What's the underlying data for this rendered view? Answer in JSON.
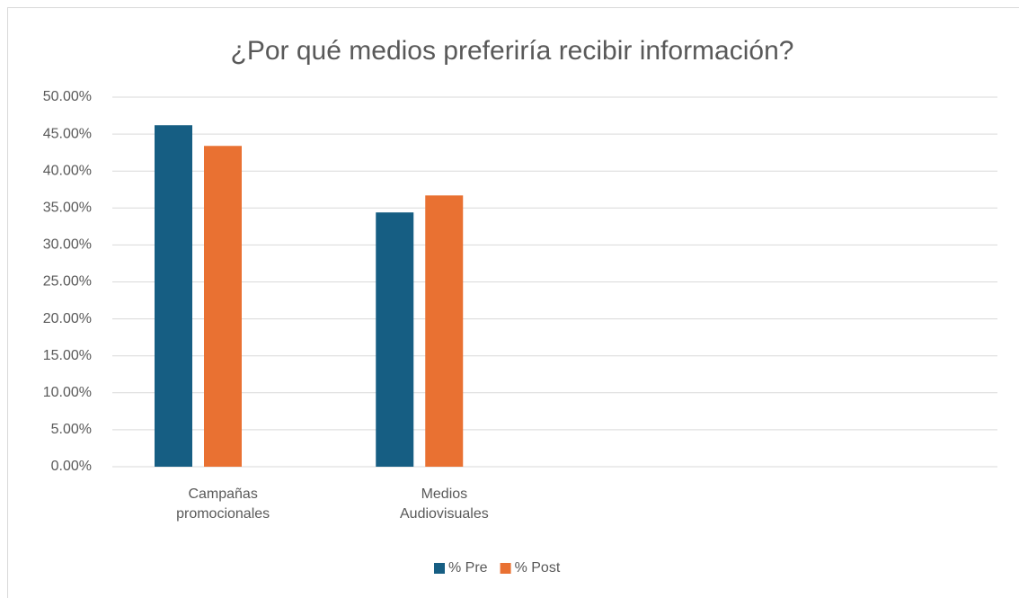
{
  "chart_data": {
    "type": "bar",
    "title": "¿Por qué medios preferiría recibir información?",
    "categories": [
      "Campañas promocionales",
      "Medios Audiovisuales",
      null,
      null
    ],
    "series": [
      {
        "name": "% Pre",
        "color": "#165E83",
        "values": [
          46.2,
          34.4,
          null,
          null
        ]
      },
      {
        "name": "% Post",
        "color": "#E97132",
        "values": [
          43.4,
          36.7,
          null,
          null
        ]
      }
    ],
    "ylim": [
      0,
      50
    ],
    "yticks": [
      {
        "value": 0,
        "label": "0.00%"
      },
      {
        "value": 5,
        "label": "5.00%"
      },
      {
        "value": 10,
        "label": "10.00%"
      },
      {
        "value": 15,
        "label": "15.00%"
      },
      {
        "value": 20,
        "label": "20.00%"
      },
      {
        "value": 25,
        "label": "25.00%"
      },
      {
        "value": 30,
        "label": "30.00%"
      },
      {
        "value": 35,
        "label": "35.00%"
      },
      {
        "value": 40,
        "label": "40.00%"
      },
      {
        "value": 45,
        "label": "45.00%"
      },
      {
        "value": 50,
        "label": "50.00%"
      }
    ],
    "grid": true,
    "legend": "bottom"
  }
}
